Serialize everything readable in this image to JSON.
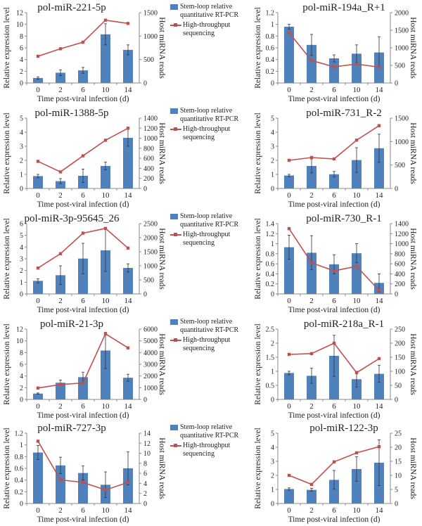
{
  "legend": {
    "bar_label_1": "Stem-loop relative",
    "bar_label_2": "quantitative RT-PCR",
    "line_label_1": "High-throughput",
    "line_label_2": "sequencing"
  },
  "colors": {
    "bar": "#4f81bd",
    "line": "#c0504d",
    "error": "#333333"
  },
  "chart_data": [
    {
      "type": "bar+line",
      "title": "pol-miR-221-5p",
      "xlabel": "Time post-viral infection (d)",
      "ylabel": "Relative expression level",
      "y2label": "Host miRNA reads",
      "categories": [
        "0",
        "2",
        "6",
        "10",
        "14"
      ],
      "ylim": [
        0,
        12
      ],
      "yticks": [
        "0",
        "2",
        "4",
        "6",
        "8",
        "10",
        "12"
      ],
      "y2lim": [
        0,
        1500
      ],
      "y2ticks": [
        "0",
        "500",
        "1000",
        "1500"
      ],
      "series": [
        {
          "name": "Stem-loop relative quantitative RT-PCR",
          "kind": "bar",
          "values": [
            0.85,
            1.75,
            2.15,
            8.3,
            5.65
          ],
          "errors": [
            0.2,
            0.5,
            0.5,
            1.8,
            0.85
          ]
        },
        {
          "name": "High-throughput sequencing",
          "kind": "line",
          "axis": "right",
          "values": [
            570,
            730,
            870,
            1340,
            1270
          ]
        }
      ]
    },
    {
      "type": "bar+line",
      "title": "pol-miR-194a_R+1",
      "xlabel": "Time post-viral infection (d)",
      "ylabel": "Relative expression level",
      "y2label": "Host miRNA reads",
      "categories": [
        "0",
        "2",
        "6",
        "10",
        "14"
      ],
      "ylim": [
        0,
        1.2
      ],
      "yticks": [
        "0",
        "0.2",
        "0.4",
        "0.6",
        "0.8",
        "1",
        "1.2"
      ],
      "y2lim": [
        0,
        2000
      ],
      "y2ticks": [
        "0",
        "500",
        "1000",
        "1500",
        "2000"
      ],
      "series": [
        {
          "name": "Stem-loop relative quantitative RT-PCR",
          "kind": "bar",
          "values": [
            0.96,
            0.65,
            0.42,
            0.5,
            0.52
          ],
          "errors": [
            0.04,
            0.18,
            0.06,
            0.15,
            0.27
          ]
        },
        {
          "name": "High-throughput sequencing",
          "kind": "line",
          "axis": "right",
          "values": [
            1430,
            640,
            460,
            540,
            450
          ]
        }
      ]
    },
    {
      "type": "bar+line",
      "title": "pol-miR-1388-5p",
      "xlabel": "Time post-viral infection (d)",
      "ylabel": "Relative expression level",
      "y2label": "Host miRNA reads",
      "categories": [
        "0",
        "2",
        "6",
        "10",
        "14"
      ],
      "ylim": [
        0,
        5
      ],
      "yticks": [
        "0",
        "1",
        "2",
        "3",
        "4",
        "5"
      ],
      "y2lim": [
        0,
        1400
      ],
      "y2ticks": [
        "0",
        "200",
        "400",
        "600",
        "800",
        "1000",
        "1200",
        "1400"
      ],
      "series": [
        {
          "name": "Stem-loop relative quantitative RT-PCR",
          "kind": "bar",
          "values": [
            0.88,
            0.52,
            0.9,
            1.6,
            3.6
          ],
          "errors": [
            0.12,
            0.18,
            0.48,
            0.27,
            0.6
          ]
        },
        {
          "name": "High-throughput sequencing",
          "kind": "line",
          "axis": "right",
          "values": [
            540,
            330,
            650,
            960,
            1200
          ]
        }
      ]
    },
    {
      "type": "bar+line",
      "title": "pol-miR-731_R-2",
      "xlabel": "Time post-viral infection (d)",
      "ylabel": "Relative expression level",
      "y2label": "Host miRNA reads",
      "categories": [
        "0",
        "2",
        "6",
        "10",
        "14"
      ],
      "ylim": [
        0,
        5
      ],
      "yticks": [
        "0",
        "1",
        "2",
        "3",
        "4",
        "5"
      ],
      "y2lim": [
        0,
        1500
      ],
      "y2ticks": [
        "0",
        "500",
        "1000",
        "1500"
      ],
      "series": [
        {
          "name": "Stem-loop relative quantitative RT-PCR",
          "kind": "bar",
          "values": [
            0.92,
            1.6,
            1.01,
            2.02,
            2.86
          ],
          "errors": [
            0.08,
            0.5,
            0.2,
            0.88,
            1.0
          ]
        },
        {
          "name": "High-throughput sequencing",
          "kind": "line",
          "axis": "right",
          "values": [
            600,
            660,
            630,
            1030,
            1340
          ]
        }
      ]
    },
    {
      "type": "bar+line",
      "title": "pol-miR-3p-95645_26",
      "xlabel": "Time post-viral infection (d)",
      "ylabel": "Relative expression level",
      "y2label": "Host miRNA reads",
      "categories": [
        "0",
        "2",
        "6",
        "10",
        "14"
      ],
      "ylim": [
        0,
        6
      ],
      "yticks": [
        "0",
        "1",
        "2",
        "3",
        "4",
        "5",
        "6"
      ],
      "y2lim": [
        0,
        2500
      ],
      "y2ticks": [
        "0",
        "500",
        "1000",
        "1500",
        "2000",
        "2500"
      ],
      "series": [
        {
          "name": "Stem-loop relative quantitative RT-PCR",
          "kind": "bar",
          "values": [
            1.12,
            1.6,
            3.02,
            3.72,
            2.22
          ],
          "errors": [
            0.17,
            0.8,
            1.3,
            1.8,
            0.35
          ]
        },
        {
          "name": "High-throughput sequencing",
          "kind": "line",
          "axis": "right",
          "values": [
            920,
            1430,
            2160,
            2330,
            1630
          ]
        }
      ]
    },
    {
      "type": "bar+line",
      "title": "pol-miR-730_R-1",
      "xlabel": "Time post-viral infection (d)",
      "ylabel": "Relative expression level",
      "y2label": "Host miRNA reads",
      "categories": [
        "0",
        "2",
        "6",
        "10",
        "14"
      ],
      "ylim": [
        0,
        1.4
      ],
      "yticks": [
        "0",
        "0.2",
        "0.4",
        "0.6",
        "0.8",
        "1",
        "1.2",
        "1.4"
      ],
      "y2lim": [
        0,
        1400
      ],
      "y2ticks": [
        "0",
        "200",
        "400",
        "600",
        "800",
        "1000",
        "1200",
        "1400"
      ],
      "series": [
        {
          "name": "Stem-loop relative quantitative RT-PCR",
          "kind": "bar",
          "values": [
            0.93,
            0.82,
            0.59,
            0.81,
            0.22
          ],
          "errors": [
            0.24,
            0.34,
            0.19,
            0.19,
            0.18
          ]
        },
        {
          "name": "High-throughput sequencing",
          "kind": "line",
          "axis": "right",
          "values": [
            1300,
            620,
            460,
            550,
            70
          ]
        }
      ]
    },
    {
      "type": "bar+line",
      "title": "pol-miR-21-3p",
      "xlabel": "Time post-viral infection (d)",
      "ylabel": "Relative expression level",
      "y2label": "Host miRNA reads",
      "categories": [
        "0",
        "2",
        "6",
        "10",
        "14"
      ],
      "ylim": [
        0,
        12
      ],
      "yticks": [
        "0",
        "2",
        "4",
        "6",
        "8",
        "10",
        "12"
      ],
      "y2lim": [
        0,
        6000
      ],
      "y2ticks": [
        "0",
        "1000",
        "2000",
        "3000",
        "4000",
        "5000",
        "6000"
      ],
      "series": [
        {
          "name": "Stem-loop relative quantitative RT-PCR",
          "kind": "bar",
          "values": [
            1.0,
            2.85,
            3.8,
            8.35,
            3.7
          ],
          "errors": [
            0.1,
            0.45,
            0.85,
            3.1,
            0.6
          ]
        },
        {
          "name": "High-throughput sequencing",
          "kind": "line",
          "axis": "right",
          "values": [
            970,
            1270,
            1400,
            5600,
            4400
          ]
        }
      ]
    },
    {
      "type": "bar+line",
      "title": "pol-miR-218a_R-1",
      "xlabel": "Time post-viral infection (d)",
      "ylabel": "Relative expression level",
      "y2label": "Host miRNA reads",
      "categories": [
        "0",
        "2",
        "6",
        "10",
        "14"
      ],
      "ylim": [
        0,
        2.5
      ],
      "yticks": [
        "0",
        "0.5",
        "1",
        "1.5",
        "2",
        "2.5"
      ],
      "y2lim": [
        0,
        250
      ],
      "y2ticks": [
        "0",
        "50",
        "100",
        "150",
        "200",
        "250"
      ],
      "series": [
        {
          "name": "Stem-loop relative quantitative RT-PCR",
          "kind": "bar",
          "values": [
            0.94,
            0.84,
            1.55,
            0.72,
            0.91
          ],
          "errors": [
            0.06,
            0.27,
            0.73,
            0.28,
            0.3
          ]
        },
        {
          "name": "High-throughput sequencing",
          "kind": "line",
          "axis": "right",
          "values": [
            160,
            163,
            200,
            95,
            145
          ]
        }
      ]
    },
    {
      "type": "bar+line",
      "title": "pol-miR-727-3p",
      "xlabel": "Time post-viral infection (d)",
      "ylabel": "Relative expression level",
      "y2label": "Host miRNA reads",
      "categories": [
        "0",
        "2",
        "6",
        "10",
        "14"
      ],
      "ylim": [
        0,
        1.2
      ],
      "yticks": [
        "0",
        "0.2",
        "0.4",
        "0.6",
        "0.8",
        "1",
        "1.2"
      ],
      "y2lim": [
        0,
        14
      ],
      "y2ticks": [
        "0",
        "2",
        "4",
        "6",
        "8",
        "10",
        "12",
        "14"
      ],
      "series": [
        {
          "name": "Stem-loop relative quantitative RT-PCR",
          "kind": "bar",
          "values": [
            0.87,
            0.65,
            0.52,
            0.32,
            0.6
          ],
          "errors": [
            0.12,
            0.14,
            0.12,
            0.22,
            0.28
          ]
        },
        {
          "name": "High-throughput sequencing",
          "kind": "line",
          "axis": "right",
          "values": [
            12.4,
            4.7,
            4.2,
            2.7,
            4.2
          ]
        }
      ]
    },
    {
      "type": "bar+line",
      "title": "pol-miR-122-3p",
      "xlabel": "Time post-viral infection (d)",
      "ylabel": "Relative expression level",
      "y2label": "Host miRNA reads",
      "categories": [
        "0",
        "2",
        "6",
        "10",
        "14"
      ],
      "ylim": [
        0,
        5
      ],
      "yticks": [
        "0",
        "1",
        "2",
        "3",
        "4",
        "5"
      ],
      "y2lim": [
        0,
        25
      ],
      "y2ticks": [
        "0",
        "5",
        "10",
        "15",
        "20",
        "25"
      ],
      "series": [
        {
          "name": "Stem-loop relative quantitative RT-PCR",
          "kind": "bar",
          "values": [
            1.03,
            0.97,
            1.68,
            2.45,
            2.9
          ],
          "errors": [
            0.08,
            0.1,
            0.67,
            0.87,
            1.63
          ]
        },
        {
          "name": "High-throughput sequencing",
          "kind": "line",
          "axis": "right",
          "values": [
            10,
            6.8,
            14.8,
            18,
            20.2
          ]
        }
      ]
    }
  ]
}
